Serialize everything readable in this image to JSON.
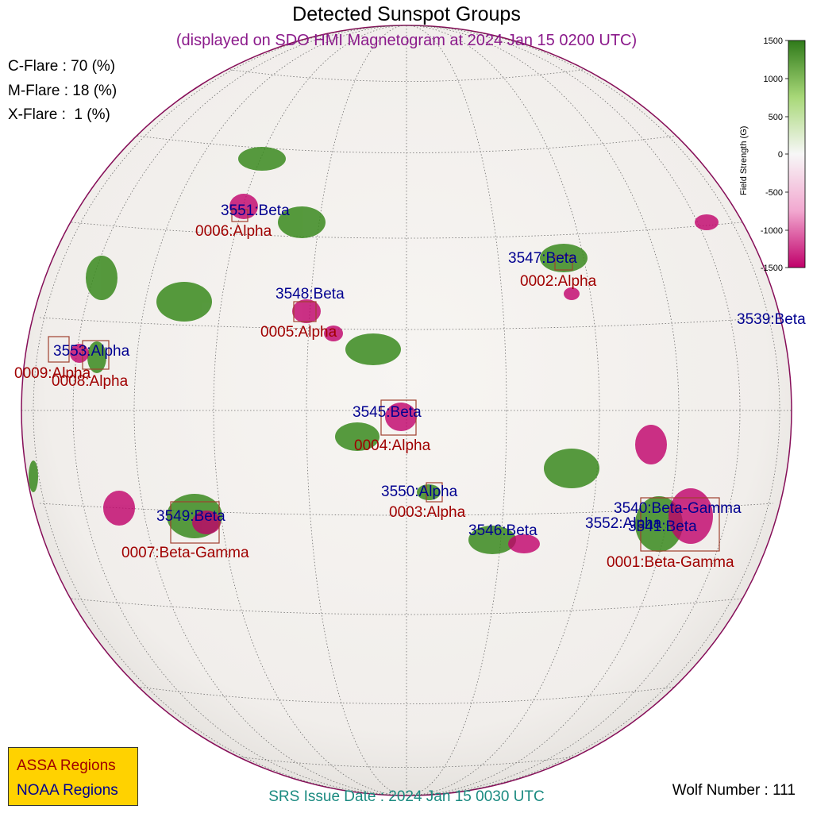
{
  "title": "Detected Sunspot Groups",
  "subtitle": "(displayed on SDO HMI Magnetogram at 2024 Jan 15 0200 UTC)",
  "flare_probabilities": [
    {
      "text": "C-Flare : 70 (%)"
    },
    {
      "text": "M-Flare : 18 (%)"
    },
    {
      "text": "X-Flare :  1 (%)"
    }
  ],
  "colorbar": {
    "label": "Field Strength (G)",
    "ticks": [
      "1500",
      "1000",
      "500",
      "0",
      "-500",
      "-1000",
      "-1500"
    ],
    "colors": {
      "positive": "#2f7a1a",
      "zero": "#f7f7f7",
      "negative": "#c0006a"
    }
  },
  "legend": {
    "assa_label": "ASSA Regions",
    "noaa_label": "NOAA Regions",
    "colors": {
      "assa": "#a00000",
      "noaa": "#000090",
      "background": "#ffd200"
    }
  },
  "noaa_regions": [
    {
      "label": "3551:Beta"
    },
    {
      "label": "3547:Beta"
    },
    {
      "label": "3548:Beta"
    },
    {
      "label": "3539:Beta"
    },
    {
      "label": "3553:Alpha"
    },
    {
      "label": "3545:Beta"
    },
    {
      "label": "3550:Alpha"
    },
    {
      "label": "3549:Beta"
    },
    {
      "label": "3546:Beta"
    },
    {
      "label": "3540:Beta-Gamma"
    },
    {
      "label": "3552:Alpha"
    },
    {
      "label": "3541:Beta"
    }
  ],
  "assa_regions": [
    {
      "label": "0006:Alpha"
    },
    {
      "label": "0002:Alpha"
    },
    {
      "label": "0005:Alpha"
    },
    {
      "label": "0009:Alpha"
    },
    {
      "label": "0008:Alpha"
    },
    {
      "label": "0004:Alpha"
    },
    {
      "label": "0003:Alpha"
    },
    {
      "label": "0007:Beta-Gamma"
    },
    {
      "label": "0001:Beta-Gamma"
    }
  ],
  "srs_issue": "SRS Issue Date : 2024 Jan 15 0030 UTC",
  "wolf_number": "Wolf Number : 111"
}
